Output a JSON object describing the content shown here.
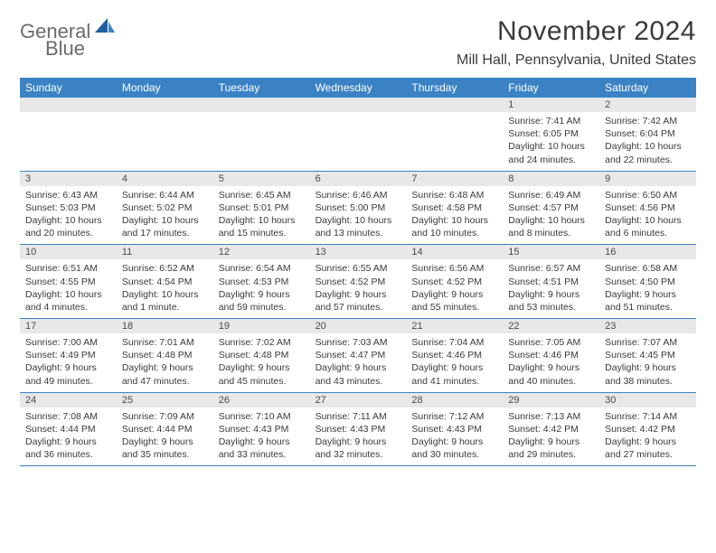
{
  "brand": {
    "word1": "General",
    "word2": "Blue"
  },
  "title": "November 2024",
  "location": "Mill Hall, Pennsylvania, United States",
  "colors": {
    "header_bg": "#3b82c4",
    "daynum_bg": "#e8e8e8",
    "text": "#3a3a3a",
    "logo_gray": "#6b6b6b",
    "logo_blue": "#2a6fb5"
  },
  "weekdays": [
    "Sunday",
    "Monday",
    "Tuesday",
    "Wednesday",
    "Thursday",
    "Friday",
    "Saturday"
  ],
  "weeks": [
    [
      {
        "n": "",
        "sr": "",
        "ss": "",
        "dl": ""
      },
      {
        "n": "",
        "sr": "",
        "ss": "",
        "dl": ""
      },
      {
        "n": "",
        "sr": "",
        "ss": "",
        "dl": ""
      },
      {
        "n": "",
        "sr": "",
        "ss": "",
        "dl": ""
      },
      {
        "n": "",
        "sr": "",
        "ss": "",
        "dl": ""
      },
      {
        "n": "1",
        "sr": "Sunrise: 7:41 AM",
        "ss": "Sunset: 6:05 PM",
        "dl": "Daylight: 10 hours and 24 minutes."
      },
      {
        "n": "2",
        "sr": "Sunrise: 7:42 AM",
        "ss": "Sunset: 6:04 PM",
        "dl": "Daylight: 10 hours and 22 minutes."
      }
    ],
    [
      {
        "n": "3",
        "sr": "Sunrise: 6:43 AM",
        "ss": "Sunset: 5:03 PM",
        "dl": "Daylight: 10 hours and 20 minutes."
      },
      {
        "n": "4",
        "sr": "Sunrise: 6:44 AM",
        "ss": "Sunset: 5:02 PM",
        "dl": "Daylight: 10 hours and 17 minutes."
      },
      {
        "n": "5",
        "sr": "Sunrise: 6:45 AM",
        "ss": "Sunset: 5:01 PM",
        "dl": "Daylight: 10 hours and 15 minutes."
      },
      {
        "n": "6",
        "sr": "Sunrise: 6:46 AM",
        "ss": "Sunset: 5:00 PM",
        "dl": "Daylight: 10 hours and 13 minutes."
      },
      {
        "n": "7",
        "sr": "Sunrise: 6:48 AM",
        "ss": "Sunset: 4:58 PM",
        "dl": "Daylight: 10 hours and 10 minutes."
      },
      {
        "n": "8",
        "sr": "Sunrise: 6:49 AM",
        "ss": "Sunset: 4:57 PM",
        "dl": "Daylight: 10 hours and 8 minutes."
      },
      {
        "n": "9",
        "sr": "Sunrise: 6:50 AM",
        "ss": "Sunset: 4:56 PM",
        "dl": "Daylight: 10 hours and 6 minutes."
      }
    ],
    [
      {
        "n": "10",
        "sr": "Sunrise: 6:51 AM",
        "ss": "Sunset: 4:55 PM",
        "dl": "Daylight: 10 hours and 4 minutes."
      },
      {
        "n": "11",
        "sr": "Sunrise: 6:52 AM",
        "ss": "Sunset: 4:54 PM",
        "dl": "Daylight: 10 hours and 1 minute."
      },
      {
        "n": "12",
        "sr": "Sunrise: 6:54 AM",
        "ss": "Sunset: 4:53 PM",
        "dl": "Daylight: 9 hours and 59 minutes."
      },
      {
        "n": "13",
        "sr": "Sunrise: 6:55 AM",
        "ss": "Sunset: 4:52 PM",
        "dl": "Daylight: 9 hours and 57 minutes."
      },
      {
        "n": "14",
        "sr": "Sunrise: 6:56 AM",
        "ss": "Sunset: 4:52 PM",
        "dl": "Daylight: 9 hours and 55 minutes."
      },
      {
        "n": "15",
        "sr": "Sunrise: 6:57 AM",
        "ss": "Sunset: 4:51 PM",
        "dl": "Daylight: 9 hours and 53 minutes."
      },
      {
        "n": "16",
        "sr": "Sunrise: 6:58 AM",
        "ss": "Sunset: 4:50 PM",
        "dl": "Daylight: 9 hours and 51 minutes."
      }
    ],
    [
      {
        "n": "17",
        "sr": "Sunrise: 7:00 AM",
        "ss": "Sunset: 4:49 PM",
        "dl": "Daylight: 9 hours and 49 minutes."
      },
      {
        "n": "18",
        "sr": "Sunrise: 7:01 AM",
        "ss": "Sunset: 4:48 PM",
        "dl": "Daylight: 9 hours and 47 minutes."
      },
      {
        "n": "19",
        "sr": "Sunrise: 7:02 AM",
        "ss": "Sunset: 4:48 PM",
        "dl": "Daylight: 9 hours and 45 minutes."
      },
      {
        "n": "20",
        "sr": "Sunrise: 7:03 AM",
        "ss": "Sunset: 4:47 PM",
        "dl": "Daylight: 9 hours and 43 minutes."
      },
      {
        "n": "21",
        "sr": "Sunrise: 7:04 AM",
        "ss": "Sunset: 4:46 PM",
        "dl": "Daylight: 9 hours and 41 minutes."
      },
      {
        "n": "22",
        "sr": "Sunrise: 7:05 AM",
        "ss": "Sunset: 4:46 PM",
        "dl": "Daylight: 9 hours and 40 minutes."
      },
      {
        "n": "23",
        "sr": "Sunrise: 7:07 AM",
        "ss": "Sunset: 4:45 PM",
        "dl": "Daylight: 9 hours and 38 minutes."
      }
    ],
    [
      {
        "n": "24",
        "sr": "Sunrise: 7:08 AM",
        "ss": "Sunset: 4:44 PM",
        "dl": "Daylight: 9 hours and 36 minutes."
      },
      {
        "n": "25",
        "sr": "Sunrise: 7:09 AM",
        "ss": "Sunset: 4:44 PM",
        "dl": "Daylight: 9 hours and 35 minutes."
      },
      {
        "n": "26",
        "sr": "Sunrise: 7:10 AM",
        "ss": "Sunset: 4:43 PM",
        "dl": "Daylight: 9 hours and 33 minutes."
      },
      {
        "n": "27",
        "sr": "Sunrise: 7:11 AM",
        "ss": "Sunset: 4:43 PM",
        "dl": "Daylight: 9 hours and 32 minutes."
      },
      {
        "n": "28",
        "sr": "Sunrise: 7:12 AM",
        "ss": "Sunset: 4:43 PM",
        "dl": "Daylight: 9 hours and 30 minutes."
      },
      {
        "n": "29",
        "sr": "Sunrise: 7:13 AM",
        "ss": "Sunset: 4:42 PM",
        "dl": "Daylight: 9 hours and 29 minutes."
      },
      {
        "n": "30",
        "sr": "Sunrise: 7:14 AM",
        "ss": "Sunset: 4:42 PM",
        "dl": "Daylight: 9 hours and 27 minutes."
      }
    ]
  ]
}
